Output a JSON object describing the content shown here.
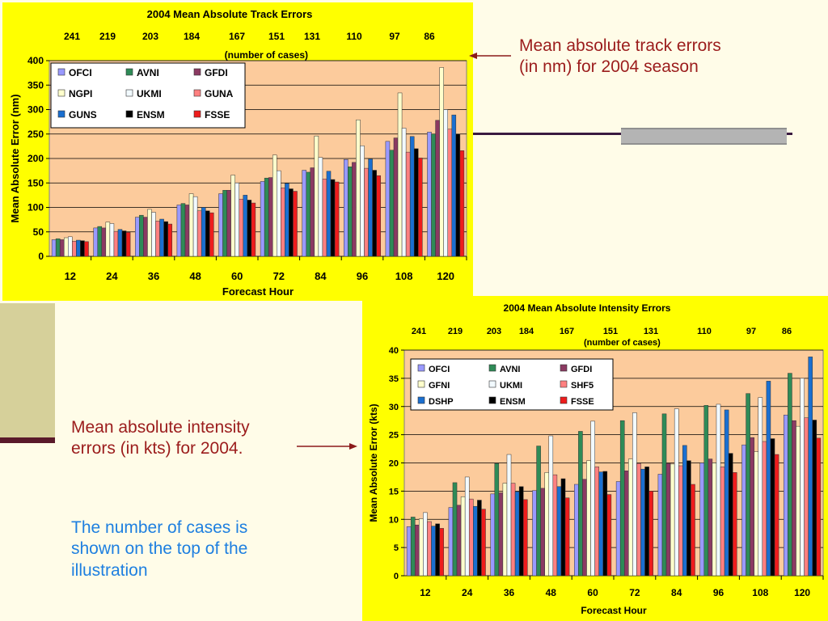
{
  "slide": {
    "track_annotation": "Mean absolute track errors\n(in nm) for 2004 season",
    "intensity_annotation": "Mean absolute intensity\nerrors (in kts) for 2004.",
    "cases_note": "The number of cases is\nshown on the top of the\nillustration"
  },
  "colors": {
    "OFCI": "#9999ff",
    "AVNI": "#2e8b57",
    "GFDI": "#8b3a62",
    "NGPI": "#ffffcc",
    "UKMI": "#f2faff",
    "GUNA": "#ff8080",
    "GUNS": "#1a6fd0",
    "ENSM": "#000000",
    "FSSE": "#ee1c1c",
    "GFNI": "#ffffcc",
    "SHF5": "#ff8080",
    "DSHP": "#1a6fd0",
    "plot_bg": "#fccb9c",
    "frame_bg": "#ffff00"
  },
  "chart_data": [
    {
      "type": "bar",
      "title": "2004 Mean Absolute Track Errors",
      "subtitle": "(number of cases)",
      "case_counts": [
        "241",
        "219",
        "203",
        "184",
        "167",
        "151",
        "131",
        "110",
        "97",
        "86"
      ],
      "xlabel": "Forecast Hour",
      "ylabel": "Mean Absolute Error (nm)",
      "ylim": [
        0,
        400
      ],
      "yticks": [
        "0",
        "50",
        "100",
        "150",
        "200",
        "250",
        "300",
        "350",
        "400"
      ],
      "categories": [
        "12",
        "24",
        "36",
        "48",
        "60",
        "72",
        "84",
        "96",
        "108",
        "120"
      ],
      "legend_position": "top-left",
      "series": [
        {
          "name": "OFCI",
          "values": [
            34,
            58,
            80,
            105,
            128,
            153,
            176,
            198,
            235,
            254
          ]
        },
        {
          "name": "AVNI",
          "values": [
            36,
            61,
            84,
            108,
            135,
            160,
            172,
            183,
            217,
            250
          ]
        },
        {
          "name": "GFDI",
          "values": [
            34,
            58,
            80,
            105,
            135,
            161,
            181,
            192,
            242,
            278
          ]
        },
        {
          "name": "NGPI",
          "values": [
            38,
            70,
            96,
            128,
            166,
            207,
            246,
            279,
            334,
            386
          ]
        },
        {
          "name": "UKMI",
          "values": [
            40,
            67,
            90,
            122,
            150,
            175,
            202,
            226,
            262,
            300
          ]
        },
        {
          "name": "GUNA",
          "values": [
            31,
            51,
            72,
            93,
            117,
            140,
            158,
            180,
            213,
            260
          ]
        },
        {
          "name": "GUNS",
          "values": [
            33,
            55,
            76,
            100,
            125,
            149,
            174,
            199,
            245,
            289
          ]
        },
        {
          "name": "ENSM",
          "values": [
            32,
            52,
            71,
            93,
            115,
            138,
            157,
            176,
            220,
            250
          ]
        },
        {
          "name": "FSSE",
          "values": [
            30,
            49,
            66,
            89,
            109,
            133,
            152,
            165,
            201,
            216
          ]
        }
      ]
    },
    {
      "type": "bar",
      "title": "2004 Mean Absolute Intensity Errors",
      "subtitle": "(number of cases)",
      "case_counts": [
        "241",
        "219",
        "203",
        "184",
        "167",
        "151",
        "131",
        "110",
        "97",
        "86"
      ],
      "xlabel": "Forecast Hour",
      "ylabel": "Mean Absolute Error (kts)",
      "ylim": [
        0,
        40
      ],
      "yticks": [
        "0",
        "5",
        "10",
        "15",
        "20",
        "25",
        "30",
        "35",
        "40"
      ],
      "categories": [
        "12",
        "24",
        "36",
        "48",
        "60",
        "72",
        "84",
        "96",
        "108",
        "120"
      ],
      "legend_position": "top-left",
      "series": [
        {
          "name": "OFCI",
          "values": [
            8.7,
            12.1,
            14.5,
            15.1,
            16.2,
            16.7,
            18.0,
            20.0,
            23.2,
            28.5
          ]
        },
        {
          "name": "AVNI",
          "values": [
            10.4,
            16.5,
            19.9,
            23.0,
            25.6,
            27.5,
            28.7,
            30.2,
            32.3,
            35.9
          ]
        },
        {
          "name": "GFDI",
          "values": [
            9.0,
            12.5,
            14.7,
            15.5,
            17.1,
            18.6,
            19.9,
            20.7,
            24.5,
            27.5
          ]
        },
        {
          "name": "GFNI",
          "values": [
            10.1,
            14.0,
            16.4,
            18.3,
            20.4,
            20.7,
            19.8,
            20.0,
            22.0,
            26.5
          ]
        },
        {
          "name": "UKMI",
          "values": [
            11.2,
            17.5,
            21.5,
            24.8,
            27.4,
            28.9,
            29.6,
            30.4,
            31.6,
            35.0
          ]
        },
        {
          "name": "SHF5",
          "values": [
            9.6,
            13.6,
            16.4,
            17.9,
            19.3,
            19.9,
            19.5,
            19.3,
            23.8,
            28.0
          ]
        },
        {
          "name": "DSHP",
          "values": [
            8.8,
            12.3,
            14.9,
            15.8,
            18.4,
            18.9,
            23.1,
            29.4,
            34.5,
            38.8
          ]
        },
        {
          "name": "ENSM",
          "values": [
            9.2,
            13.4,
            15.8,
            17.2,
            18.5,
            19.3,
            20.4,
            21.7,
            24.3,
            27.6
          ]
        },
        {
          "name": "FSSE",
          "values": [
            8.4,
            11.8,
            13.5,
            13.8,
            14.4,
            15.0,
            16.2,
            18.3,
            21.5,
            24.4
          ]
        }
      ]
    }
  ]
}
